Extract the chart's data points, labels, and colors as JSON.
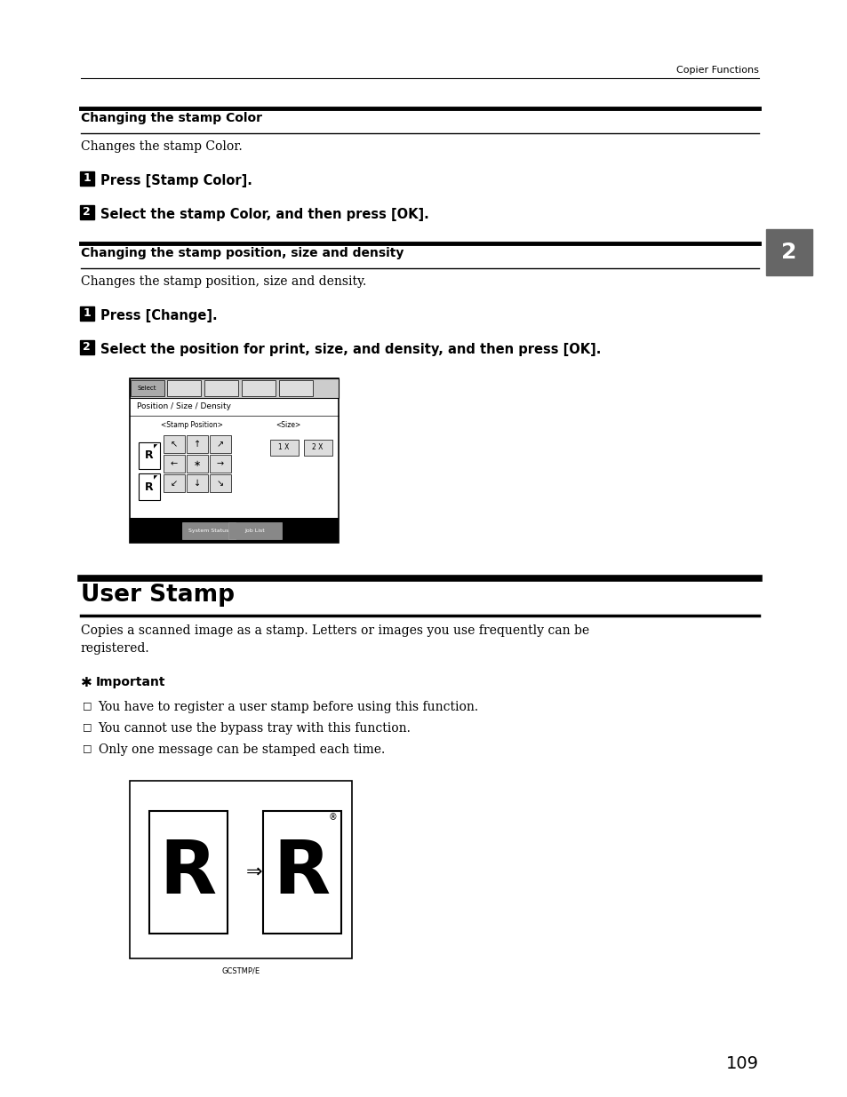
{
  "bg_color": "#ffffff",
  "page_number": "109",
  "header_text": "Copier Functions",
  "section1_title": "Changing the stamp Color",
  "section1_body": "Changes the stamp Color.",
  "section1_step1": "Press [Stamp Color].",
  "section1_step2": "Select the stamp Color, and then press [OK].",
  "section2_title": "Changing the stamp position, size and density",
  "section2_body": "Changes the stamp position, size and density.",
  "section2_step1": "Press [Change].",
  "section2_step2": "Select the position for print, size, and density, and then press [OK].",
  "section3_title": "User Stamp",
  "section3_body1": "Copies a scanned image as a stamp. Letters or images you use frequently can be",
  "section3_body2": "registered.",
  "important_label": "Important",
  "bullet1": "You have to register a user stamp before using this function.",
  "bullet2": "You cannot use the bypass tray with this function.",
  "bullet3": "Only one message can be stamped each time.",
  "caption": "GCSTMP/E",
  "tab_label": "2",
  "lm": 0.095,
  "rm": 0.895
}
